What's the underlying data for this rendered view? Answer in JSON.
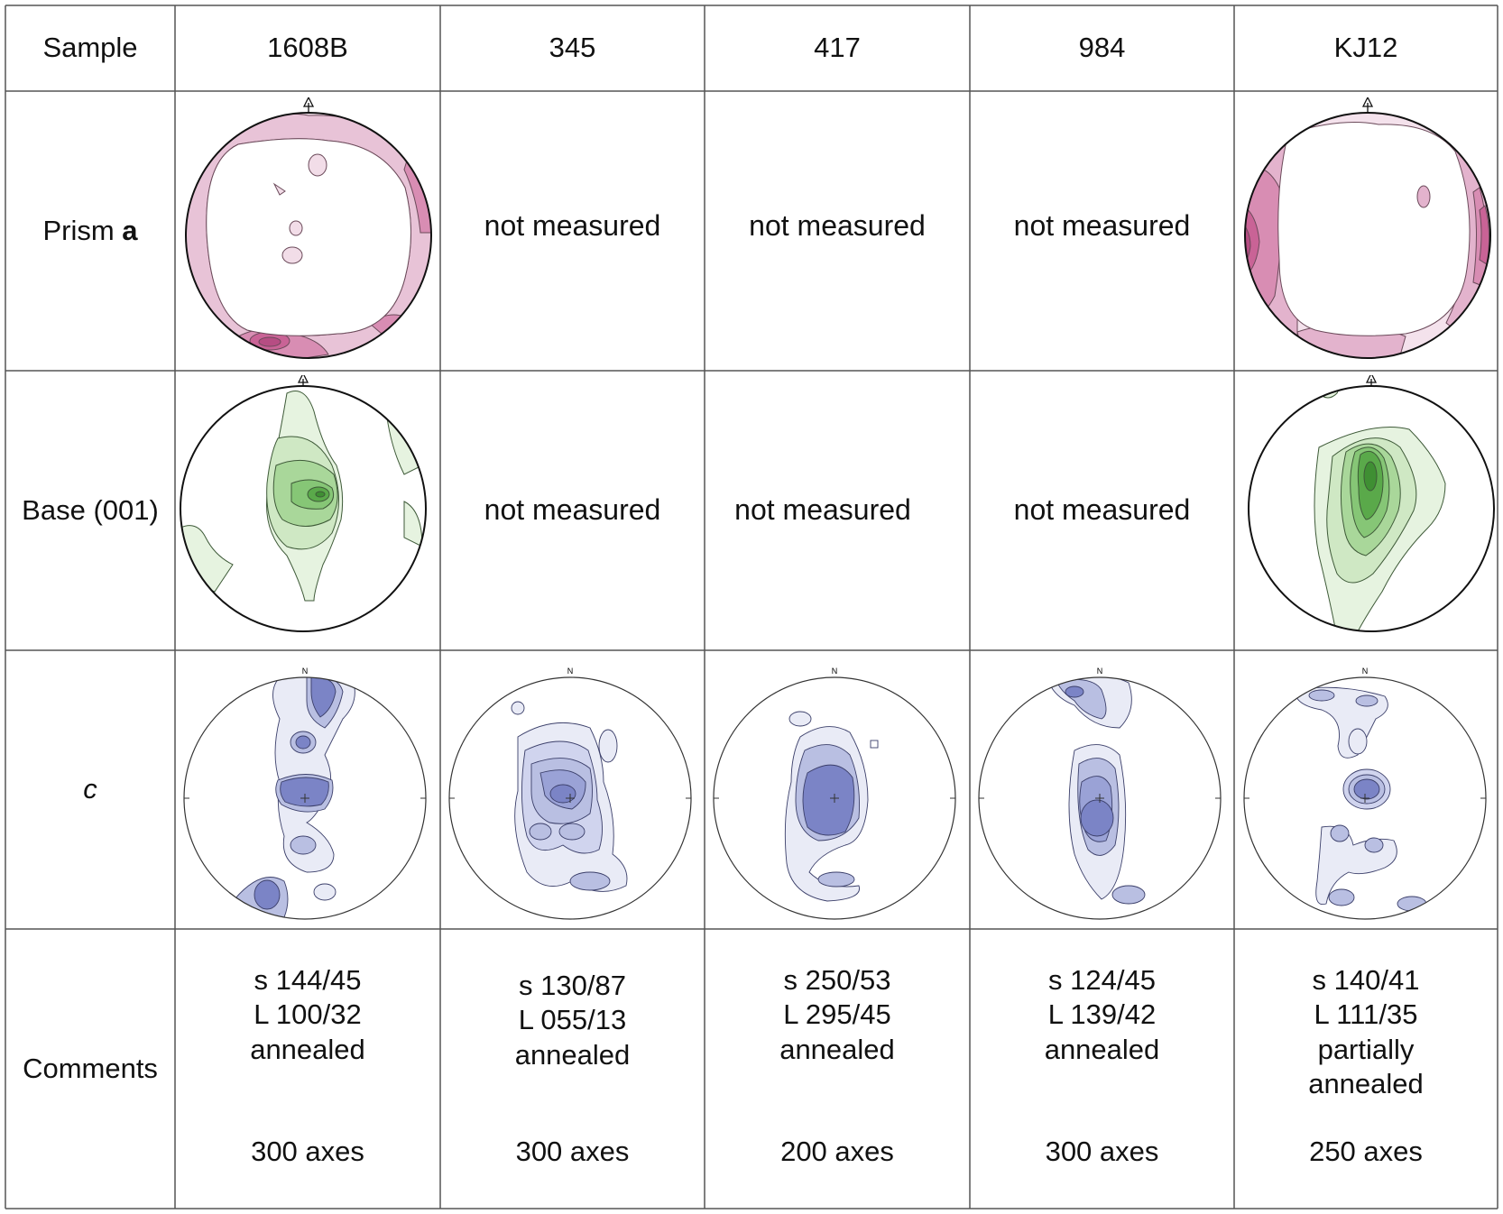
{
  "header": {
    "label": "Sample",
    "samples": [
      "1608B",
      "345",
      "417",
      "984",
      "KJ12"
    ]
  },
  "rows": {
    "prism": {
      "label": "Prism ",
      "label_bold": "a"
    },
    "base": {
      "label": "Base (001)"
    },
    "c": {
      "label": "c"
    },
    "comments": {
      "label": "Comments"
    }
  },
  "not_measured": "not measured",
  "net_labels": {
    "north": "N"
  },
  "comments": [
    {
      "lines": [
        "s 144/45",
        "L 100/32",
        "annealed"
      ],
      "axes": "300 axes"
    },
    {
      "lines": [
        "s 130/87",
        "L 055/13",
        "annealed"
      ],
      "axes": "300 axes"
    },
    {
      "lines": [
        "s 250/53",
        "L 295/45",
        "annealed"
      ],
      "axes": "200 axes"
    },
    {
      "lines": [
        "s 124/45",
        "L 139/42",
        "annealed"
      ],
      "axes": "300 axes"
    },
    {
      "lines": [
        "s 140/41",
        "L 111/35",
        "partially",
        "annealed"
      ],
      "axes": "250 axes"
    }
  ],
  "colors": {
    "prism_light": "#f2dde8",
    "prism_mid": "#e3b3cd",
    "prism_dark": "#d0729f",
    "base_light": "#e6f3e0",
    "base_mid": "#bfe0b0",
    "base_dark": "#6fba5f",
    "c_light": "#e9ebf6",
    "c_mid": "#b9bfe2",
    "c_dark": "#7b84c6"
  }
}
